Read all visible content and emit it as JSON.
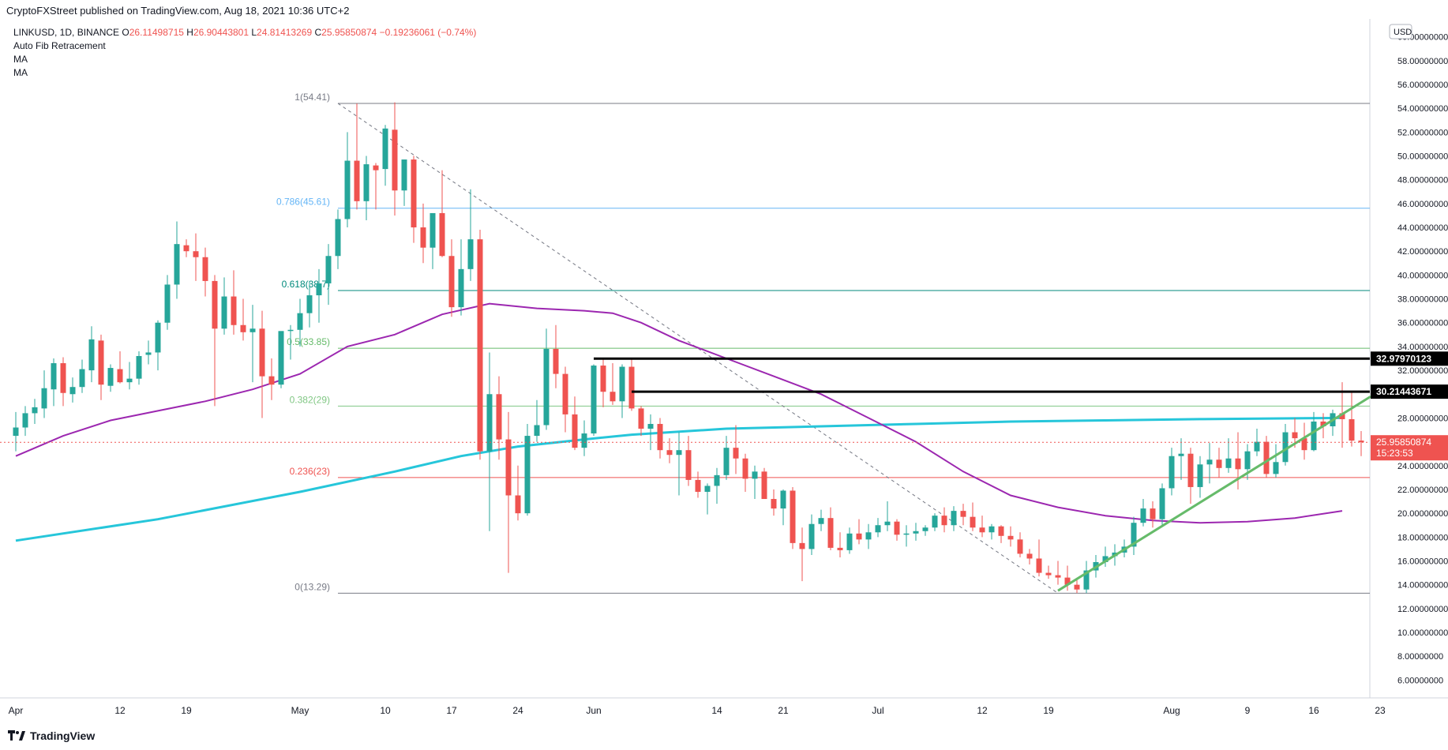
{
  "publisher_line": "CryptoFXStreet published on TradingView.com, Aug 18, 2021 10:36 UTC+2",
  "legend": {
    "symbol": "LINKUSD, 1D, BINANCE",
    "o_label": "O",
    "o": "26.11498715",
    "h_label": "H",
    "h": "26.90443801",
    "l_label": "L",
    "l": "24.81413269",
    "c_label": "C",
    "c": "25.95850874",
    "change": "−0.19236061 (−0.74%)",
    "indicators": [
      "Auto Fib Retracement",
      "MA",
      "MA"
    ]
  },
  "footer_brand": "TradingView",
  "colors": {
    "up": "#26a69a",
    "down": "#ef5350",
    "ma50": "#9c27b0",
    "ma200": "#26c6da",
    "trend": "#66bb6a",
    "resistance": "#000000"
  },
  "chart_data": {
    "type": "candlestick",
    "currency": "USD",
    "ylim": [
      4.5,
      61.5
    ],
    "price_ticks": [
      "60.00000000",
      "58.00000000",
      "56.00000000",
      "54.00000000",
      "52.00000000",
      "50.00000000",
      "48.00000000",
      "46.00000000",
      "44.00000000",
      "42.00000000",
      "40.00000000",
      "38.00000000",
      "36.00000000",
      "34.00000000",
      "32.00000000",
      "28.00000000",
      "24.00000000",
      "22.00000000",
      "20.00000000",
      "18.00000000",
      "16.00000000",
      "14.00000000",
      "12.00000000",
      "10.00000000",
      "8.00000000",
      "6.00000000"
    ],
    "tick_values": [
      60,
      58,
      56,
      54,
      52,
      50,
      48,
      46,
      44,
      42,
      40,
      38,
      36,
      34,
      32,
      28,
      24,
      22,
      20,
      18,
      16,
      14,
      12,
      10,
      8,
      6
    ],
    "time_labels": [
      {
        "label": "Apr",
        "day": 0
      },
      {
        "label": "12",
        "day": 11
      },
      {
        "label": "19",
        "day": 18
      },
      {
        "label": "May",
        "day": 30
      },
      {
        "label": "10",
        "day": 39
      },
      {
        "label": "17",
        "day": 46
      },
      {
        "label": "24",
        "day": 53
      },
      {
        "label": "Jun",
        "day": 61
      },
      {
        "label": "14",
        "day": 74
      },
      {
        "label": "21",
        "day": 81
      },
      {
        "label": "Jul",
        "day": 91
      },
      {
        "label": "12",
        "day": 102
      },
      {
        "label": "19",
        "day": 109
      },
      {
        "label": "Aug",
        "day": 122
      },
      {
        "label": "9",
        "day": 130
      },
      {
        "label": "16",
        "day": 137
      },
      {
        "label": "23",
        "day": 144
      }
    ],
    "fib_levels": [
      {
        "label": "1(54.41)",
        "value": 54.41,
        "color": "#787b86"
      },
      {
        "label": "0.786(45.61)",
        "value": 45.61,
        "color": "#64b5f6"
      },
      {
        "label": "0.618(38.7)",
        "value": 38.7,
        "color": "#00897b"
      },
      {
        "label": "0.5(33.85)",
        "value": 33.85,
        "color": "#66bb6a"
      },
      {
        "label": "0.382(29)",
        "value": 29.0,
        "color": "#81c784"
      },
      {
        "label": "0.236(23)",
        "value": 23.0,
        "color": "#ef5350"
      },
      {
        "label": "0(13.29)",
        "value": 13.29,
        "color": "#787b86"
      }
    ],
    "resistance_lines": [
      {
        "label": "32.97970123",
        "value": 32.98,
        "start_day": 61
      },
      {
        "label": "30.21443671",
        "value": 30.21,
        "start_day": 65
      }
    ],
    "last_price": {
      "label": "25.95850874",
      "countdown": "15:23:53",
      "value": 25.96
    },
    "trendline": {
      "from": [
        110,
        13.5
      ],
      "to": [
        143,
        29.8
      ]
    },
    "fib_diagonal": {
      "from": [
        34,
        54.41
      ],
      "to": [
        110,
        13.29
      ]
    },
    "ma50": [
      [
        0,
        24.8
      ],
      [
        5,
        26.5
      ],
      [
        10,
        27.8
      ],
      [
        15,
        28.6
      ],
      [
        20,
        29.4
      ],
      [
        25,
        30.4
      ],
      [
        30,
        31.7
      ],
      [
        35,
        34.0
      ],
      [
        40,
        35.0
      ],
      [
        45,
        36.7
      ],
      [
        50,
        37.6
      ],
      [
        55,
        37.2
      ],
      [
        60,
        37.0
      ],
      [
        63,
        36.8
      ],
      [
        66,
        36.0
      ],
      [
        70,
        34.5
      ],
      [
        75,
        33.0
      ],
      [
        80,
        31.5
      ],
      [
        85,
        30.0
      ],
      [
        90,
        28.0
      ],
      [
        95,
        26.0
      ],
      [
        100,
        23.5
      ],
      [
        105,
        21.5
      ],
      [
        110,
        20.5
      ],
      [
        115,
        19.8
      ],
      [
        120,
        19.4
      ],
      [
        125,
        19.2
      ],
      [
        130,
        19.3
      ],
      [
        135,
        19.6
      ],
      [
        140,
        20.2
      ]
    ],
    "ma200": [
      [
        0,
        17.7
      ],
      [
        15,
        19.5
      ],
      [
        30,
        21.8
      ],
      [
        40,
        23.5
      ],
      [
        47,
        24.8
      ],
      [
        53,
        25.6
      ],
      [
        60,
        26.2
      ],
      [
        65,
        26.6
      ],
      [
        75,
        27.1
      ],
      [
        85,
        27.3
      ],
      [
        95,
        27.5
      ],
      [
        105,
        27.7
      ],
      [
        115,
        27.8
      ],
      [
        125,
        27.9
      ],
      [
        140,
        28.0
      ]
    ],
    "candles": [
      [
        26.5,
        28.5,
        25.2,
        27.2
      ],
      [
        27.2,
        29.0,
        26.5,
        28.4
      ],
      [
        28.4,
        29.6,
        27.5,
        28.9
      ],
      [
        28.8,
        32.0,
        28.0,
        30.5
      ],
      [
        30.4,
        33.0,
        29.0,
        32.6
      ],
      [
        32.6,
        33.1,
        29.0,
        30.1
      ],
      [
        30.0,
        31.4,
        29.3,
        30.6
      ],
      [
        30.6,
        32.9,
        30.1,
        32.1
      ],
      [
        32.0,
        35.7,
        31.0,
        34.6
      ],
      [
        34.5,
        35.0,
        29.5,
        30.8
      ],
      [
        30.7,
        32.5,
        30.2,
        32.2
      ],
      [
        32.1,
        33.6,
        30.9,
        31.0
      ],
      [
        31.0,
        32.7,
        30.4,
        31.3
      ],
      [
        31.3,
        33.6,
        30.8,
        33.2
      ],
      [
        33.3,
        34.5,
        32.5,
        33.5
      ],
      [
        33.5,
        36.2,
        32.0,
        36.0
      ],
      [
        36.0,
        40.0,
        35.4,
        39.2
      ],
      [
        39.2,
        44.5,
        38.0,
        42.6
      ],
      [
        42.5,
        43.0,
        41.5,
        42.0
      ],
      [
        42.0,
        43.5,
        39.5,
        41.5
      ],
      [
        41.5,
        42.3,
        38.2,
        39.5
      ],
      [
        39.5,
        40.0,
        29.0,
        35.5
      ],
      [
        35.5,
        39.8,
        35.0,
        38.2
      ],
      [
        38.2,
        40.4,
        35.0,
        35.8
      ],
      [
        35.8,
        38.0,
        34.5,
        35.2
      ],
      [
        35.2,
        37.5,
        31.0,
        35.5
      ],
      [
        35.5,
        37.0,
        28.0,
        31.5
      ],
      [
        31.5,
        33.0,
        29.5,
        30.8
      ],
      [
        30.8,
        35.0,
        30.5,
        35.3
      ],
      [
        35.3,
        35.8,
        32.9,
        35.4
      ],
      [
        35.4,
        38.0,
        34.0,
        36.8
      ],
      [
        36.8,
        39.5,
        35.6,
        38.3
      ],
      [
        38.3,
        40.5,
        36.0,
        39.3
      ],
      [
        39.3,
        42.6,
        37.5,
        41.6
      ],
      [
        41.6,
        45.5,
        40.5,
        44.7
      ],
      [
        44.7,
        52.0,
        44.0,
        49.6
      ],
      [
        49.6,
        54.4,
        45.5,
        46.2
      ],
      [
        46.2,
        50.0,
        44.6,
        49.3
      ],
      [
        49.2,
        49.4,
        45.5,
        48.8
      ],
      [
        48.9,
        52.6,
        47.5,
        52.3
      ],
      [
        52.2,
        54.5,
        45.0,
        47.1
      ],
      [
        47.1,
        49.7,
        45.8,
        49.7
      ],
      [
        49.7,
        50.0,
        42.7,
        44.0
      ],
      [
        44.0,
        46.0,
        41.0,
        42.3
      ],
      [
        42.3,
        45.0,
        40.5,
        45.2
      ],
      [
        45.2,
        48.8,
        41.5,
        41.6
      ],
      [
        41.6,
        43.0,
        36.5,
        37.3
      ],
      [
        37.3,
        43.0,
        36.6,
        40.5
      ],
      [
        40.5,
        47.2,
        39.5,
        43.0
      ],
      [
        43.0,
        43.8,
        24.5,
        25.2
      ],
      [
        25.2,
        33.5,
        18.5,
        30.0
      ],
      [
        30.0,
        31.5,
        24.5,
        26.2
      ],
      [
        26.2,
        28.5,
        15.0,
        21.5
      ],
      [
        21.5,
        24.0,
        19.4,
        20.0
      ],
      [
        20.0,
        27.5,
        19.8,
        26.5
      ],
      [
        26.5,
        29.5,
        26.0,
        27.4
      ],
      [
        27.4,
        35.5,
        27.0,
        33.8
      ],
      [
        33.8,
        35.8,
        30.5,
        31.7
      ],
      [
        31.7,
        32.3,
        26.8,
        28.3
      ],
      [
        28.3,
        29.8,
        25.3,
        25.5
      ],
      [
        25.5,
        27.8,
        24.8,
        26.7
      ],
      [
        26.7,
        32.5,
        26.5,
        32.4
      ],
      [
        32.4,
        33.0,
        28.9,
        30.2
      ],
      [
        30.2,
        32.6,
        29.1,
        29.4
      ],
      [
        29.4,
        32.5,
        28.0,
        32.3
      ],
      [
        32.3,
        33.0,
        28.6,
        28.8
      ],
      [
        28.8,
        29.0,
        26.5,
        27.1
      ],
      [
        27.1,
        28.3,
        25.3,
        27.5
      ],
      [
        27.5,
        28.0,
        24.6,
        25.3
      ],
      [
        25.3,
        26.3,
        24.2,
        24.9
      ],
      [
        24.9,
        26.8,
        21.5,
        25.3
      ],
      [
        25.3,
        26.5,
        22.3,
        22.8
      ],
      [
        22.8,
        23.5,
        21.3,
        21.8
      ],
      [
        21.8,
        22.5,
        19.9,
        22.3
      ],
      [
        22.3,
        23.8,
        20.8,
        23.2
      ],
      [
        23.2,
        26.5,
        22.8,
        25.5
      ],
      [
        25.5,
        27.4,
        23.3,
        24.6
      ],
      [
        24.6,
        25.0,
        21.8,
        22.9
      ],
      [
        22.9,
        24.0,
        21.2,
        23.5
      ],
      [
        23.5,
        23.8,
        21.5,
        21.2
      ],
      [
        21.2,
        22.0,
        19.8,
        20.4
      ],
      [
        20.4,
        22.0,
        19.0,
        21.9
      ],
      [
        21.9,
        22.2,
        17.0,
        17.5
      ],
      [
        17.5,
        18.8,
        14.3,
        17.0
      ],
      [
        17.0,
        19.9,
        16.5,
        19.1
      ],
      [
        19.1,
        20.3,
        18.5,
        19.6
      ],
      [
        19.6,
        20.5,
        16.9,
        17.1
      ],
      [
        17.1,
        18.4,
        16.3,
        16.9
      ],
      [
        16.9,
        18.8,
        16.6,
        18.3
      ],
      [
        18.3,
        19.5,
        17.4,
        17.8
      ],
      [
        17.8,
        19.1,
        17.0,
        18.4
      ],
      [
        18.4,
        19.6,
        18.0,
        19.0
      ],
      [
        19.0,
        21.0,
        18.5,
        19.3
      ],
      [
        19.3,
        19.5,
        17.7,
        18.2
      ],
      [
        18.2,
        19.0,
        17.2,
        18.3
      ],
      [
        18.3,
        19.2,
        17.7,
        18.5
      ],
      [
        18.5,
        19.0,
        18.1,
        18.8
      ],
      [
        18.8,
        20.0,
        18.5,
        19.8
      ],
      [
        19.8,
        20.5,
        18.4,
        19.0
      ],
      [
        19.0,
        20.6,
        18.5,
        20.2
      ],
      [
        20.2,
        20.8,
        19.0,
        19.7
      ],
      [
        19.7,
        20.9,
        18.5,
        18.8
      ],
      [
        18.8,
        19.8,
        18.0,
        18.4
      ],
      [
        18.4,
        19.1,
        17.8,
        18.9
      ],
      [
        18.9,
        19.0,
        17.5,
        18.1
      ],
      [
        18.1,
        18.9,
        17.2,
        17.8
      ],
      [
        17.8,
        18.4,
        16.3,
        16.6
      ],
      [
        16.6,
        17.0,
        15.7,
        16.2
      ],
      [
        16.2,
        17.8,
        14.7,
        15.0
      ],
      [
        15.0,
        15.6,
        14.5,
        14.8
      ],
      [
        14.8,
        16.0,
        14.0,
        14.6
      ],
      [
        14.6,
        15.6,
        13.5,
        14.0
      ],
      [
        14.0,
        14.5,
        13.3,
        13.6
      ],
      [
        13.6,
        16.0,
        13.3,
        15.2
      ],
      [
        15.2,
        16.5,
        14.6,
        15.9
      ],
      [
        15.9,
        17.2,
        15.5,
        16.4
      ],
      [
        16.4,
        17.4,
        15.6,
        16.7
      ],
      [
        16.7,
        17.8,
        16.3,
        17.2
      ],
      [
        17.2,
        19.7,
        16.5,
        19.2
      ],
      [
        19.2,
        21.2,
        18.9,
        20.4
      ],
      [
        20.4,
        21.0,
        18.8,
        19.5
      ],
      [
        19.5,
        22.5,
        19.0,
        22.1
      ],
      [
        22.1,
        25.5,
        21.5,
        24.8
      ],
      [
        24.8,
        26.3,
        22.8,
        25.0
      ],
      [
        25.0,
        25.5,
        20.8,
        22.2
      ],
      [
        22.2,
        24.8,
        21.3,
        24.1
      ],
      [
        24.1,
        25.9,
        22.5,
        24.5
      ],
      [
        24.5,
        25.5,
        23.0,
        23.8
      ],
      [
        23.8,
        26.3,
        23.4,
        24.6
      ],
      [
        24.6,
        26.8,
        22.0,
        23.7
      ],
      [
        23.7,
        25.8,
        22.8,
        25.2
      ],
      [
        25.2,
        27.1,
        24.8,
        26.0
      ],
      [
        26.0,
        26.5,
        23.0,
        23.3
      ],
      [
        23.3,
        25.8,
        23.0,
        24.3
      ],
      [
        24.3,
        27.5,
        24.0,
        26.8
      ],
      [
        26.8,
        28.0,
        25.5,
        26.3
      ],
      [
        26.3,
        27.6,
        24.5,
        25.3
      ],
      [
        25.3,
        28.5,
        25.2,
        27.7
      ],
      [
        27.7,
        28.4,
        26.3,
        27.3
      ],
      [
        27.3,
        28.7,
        26.5,
        28.4
      ],
      [
        28.4,
        31.0,
        25.5,
        27.9
      ],
      [
        27.9,
        30.2,
        25.6,
        26.1
      ],
      [
        26.1,
        26.9,
        24.8,
        25.96
      ]
    ]
  }
}
